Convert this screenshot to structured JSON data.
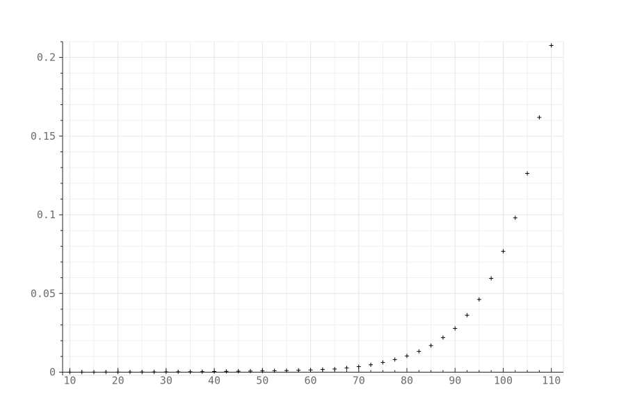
{
  "chart_data": {
    "type": "scatter",
    "title": "",
    "xlabel": "",
    "ylabel": "",
    "xlim": [
      8.5,
      112.5
    ],
    "ylim": [
      -0.002,
      0.21
    ],
    "grid": true,
    "legend": "none",
    "marker": "plus",
    "colors": {
      "marker": "#000000",
      "grid": "#e6e6e6",
      "axis": "#222222",
      "tick_text": "#6b6b6b"
    },
    "x_ticks": [
      10,
      20,
      30,
      40,
      50,
      60,
      70,
      80,
      90,
      100,
      110
    ],
    "x_tick_labels": [
      "10",
      "20",
      "30",
      "40",
      "50",
      "60",
      "70",
      "80",
      "90",
      "100",
      "110"
    ],
    "y_ticks": [
      0,
      0.05,
      0.1,
      0.15,
      0.2
    ],
    "y_tick_labels": [
      "0",
      "0.05",
      "0.1",
      "0.15",
      "0.2"
    ],
    "series": [
      {
        "x": [
          10,
          12.5,
          15,
          17.5,
          20,
          22.5,
          25,
          27.5,
          30,
          32.5,
          35,
          37.5,
          40,
          42.5,
          45,
          47.5,
          50,
          52.5,
          55,
          57.5,
          60,
          62.5,
          65,
          67.5,
          70,
          72.5,
          75,
          77.5,
          80,
          82.5,
          85,
          87.5,
          90,
          92.5,
          95,
          97.5,
          100,
          102.5,
          105,
          107.5,
          110
        ],
        "y": [
          1e-05,
          2e-05,
          3e-05,
          4e-05,
          6e-05,
          8e-05,
          0.0001,
          0.00013,
          0.00016,
          0.0002,
          0.00025,
          0.0003,
          0.0004,
          0.0005,
          0.0006,
          0.0007,
          0.0008,
          0.0009,
          0.001,
          0.0012,
          0.0014,
          0.0017,
          0.002,
          0.0027,
          0.0035,
          0.0047,
          0.0062,
          0.008,
          0.0103,
          0.0132,
          0.0169,
          0.022,
          0.0278,
          0.0362,
          0.0462,
          0.0596,
          0.0768,
          0.0981,
          0.1263,
          0.1619,
          0.2076
        ]
      }
    ]
  }
}
